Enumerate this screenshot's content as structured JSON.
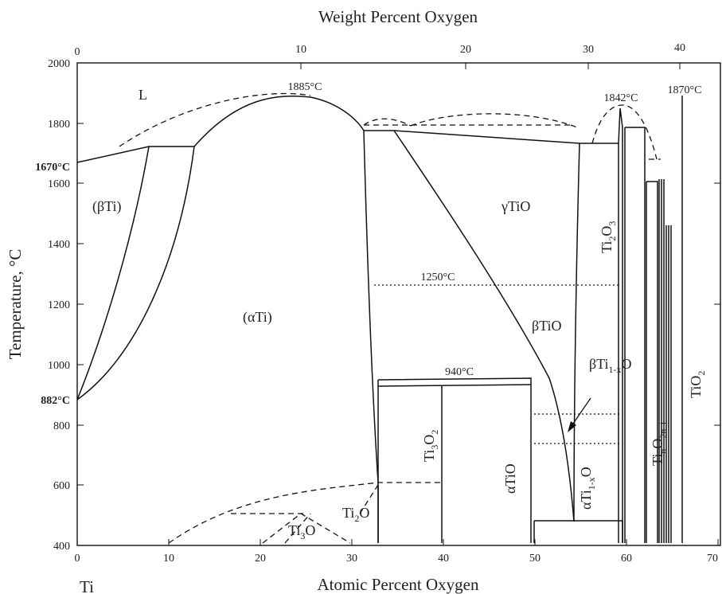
{
  "axes": {
    "top_title": "Weight Percent Oxygen",
    "bottom_title": "Atomic Percent Oxygen",
    "left_title": "Temperature, °C",
    "corner_label": "Ti",
    "x_ticks": [
      "0",
      "10",
      "20",
      "30",
      "40",
      "50",
      "60",
      "70"
    ],
    "top_ticks": [
      "0",
      "10",
      "20",
      "30",
      "40"
    ],
    "y_ticks": [
      "400",
      "600",
      "800",
      "1000",
      "1200",
      "1400",
      "1600",
      "1800",
      "2000"
    ],
    "y_special": [
      "1670°C",
      "882°C"
    ]
  },
  "regions": {
    "liquid": "L",
    "beta_ti": "(βTi)",
    "alpha_ti": "(αTi)",
    "gamma_tio": "γTiO",
    "beta_tio": "βTiO",
    "beta_ti1xo": "βTi",
    "alpha_tio": "αTiO",
    "ti3o2": "Ti",
    "ti2o": "Ti",
    "ti3o": "Ti",
    "ti2o3": "Ti",
    "alpha_ti1xo": "αTi",
    "tino2n1": "Ti",
    "tio2": "TiO"
  },
  "temperatures": {
    "t1885": "1885°C",
    "t1842": "1842°C",
    "t1870": "1870°C",
    "t1250": "1250°C",
    "t940": "940°C"
  },
  "chart_data": {
    "type": "phase-diagram",
    "x_axis": "Atomic Percent Oxygen",
    "x_range": [
      0,
      70
    ],
    "x2_axis": "Weight Percent Oxygen",
    "x2_ticks": [
      0,
      10,
      20,
      30,
      40
    ],
    "y_axis": "Temperature, °C",
    "y_range": [
      400,
      2000
    ],
    "invariants_c": [
      1885,
      1842,
      1870,
      1250,
      940,
      1670,
      882
    ]
  }
}
